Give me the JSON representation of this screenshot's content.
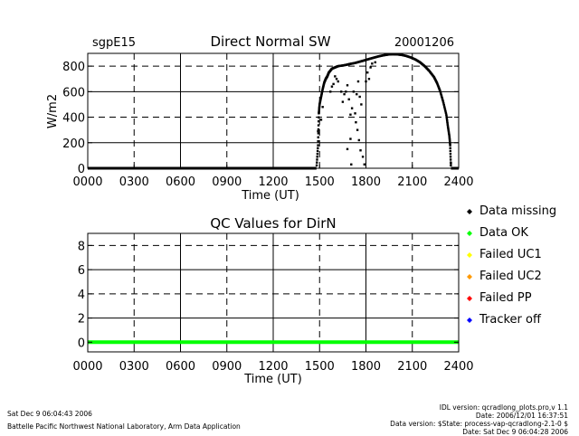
{
  "chart_data": [
    {
      "type": "scatter",
      "title": "Direct Normal SW",
      "left_label": "sgpE15",
      "right_label": "20001206",
      "xlabel": "Time (UT)",
      "ylabel": "W/m2",
      "xlim": [
        0,
        2400
      ],
      "ylim": [
        0,
        900
      ],
      "x_ticks": [
        "0000",
        "0300",
        "0600",
        "0900",
        "1200",
        "1500",
        "1800",
        "2100",
        "2400"
      ],
      "y_ticks": [
        "0",
        "200",
        "400",
        "600",
        "800"
      ],
      "grid": "dashed horizontal at 400 and 800, solid verticals every 3 h",
      "series": [
        {
          "color": "#000000",
          "points": [
            [
              0,
              0
            ],
            [
              1400,
              0
            ],
            [
              1480,
              0
            ],
            [
              1490,
              180
            ],
            [
              1495,
              430
            ],
            [
              1500,
              500
            ],
            [
              1510,
              560
            ],
            [
              1520,
              620
            ],
            [
              1530,
              670
            ],
            [
              1540,
              700
            ],
            [
              1550,
              720
            ],
            [
              1560,
              750
            ],
            [
              1580,
              780
            ],
            [
              1600,
              790
            ],
            [
              1620,
              800
            ],
            [
              1650,
              805
            ],
            [
              1680,
              812
            ],
            [
              1700,
              818
            ],
            [
              1730,
              825
            ],
            [
              1760,
              835
            ],
            [
              1790,
              845
            ],
            [
              1820,
              856
            ],
            [
              1850,
              866
            ],
            [
              1880,
              876
            ],
            [
              1910,
              884
            ],
            [
              1940,
              890
            ],
            [
              1970,
              893
            ],
            [
              2000,
              892
            ],
            [
              2030,
              888
            ],
            [
              2060,
              880
            ],
            [
              2090,
              868
            ],
            [
              2120,
              852
            ],
            [
              2150,
              830
            ],
            [
              2180,
              800
            ],
            [
              2210,
              762
            ],
            [
              2240,
              715
            ],
            [
              2260,
              668
            ],
            [
              2280,
              605
            ],
            [
              2300,
              520
            ],
            [
              2320,
              420
            ],
            [
              2330,
              330
            ],
            [
              2340,
              250
            ],
            [
              2345,
              180
            ],
            [
              2350,
              0
            ],
            [
              2400,
              0
            ]
          ],
          "scatter": [
            [
              1490,
              290
            ],
            [
              1510,
              380
            ],
            [
              1520,
              480
            ],
            [
              1570,
              600
            ],
            [
              1580,
              640
            ],
            [
              1590,
              660
            ],
            [
              1600,
              720
            ],
            [
              1610,
              700
            ],
            [
              1620,
              680
            ],
            [
              1640,
              600
            ],
            [
              1650,
              520
            ],
            [
              1660,
              580
            ],
            [
              1670,
              600
            ],
            [
              1680,
              650
            ],
            [
              1690,
              540
            ],
            [
              1700,
              420
            ],
            [
              1705,
              30
            ],
            [
              1710,
              470
            ],
            [
              1720,
              600
            ],
            [
              1730,
              430
            ],
            [
              1735,
              360
            ],
            [
              1740,
              580
            ],
            [
              1745,
              300
            ],
            [
              1750,
              680
            ],
            [
              1755,
              220
            ],
            [
              1760,
              560
            ],
            [
              1765,
              140
            ],
            [
              1770,
              500
            ],
            [
              1780,
              90
            ],
            [
              1790,
              30
            ],
            [
              1800,
              680
            ],
            [
              1810,
              750
            ],
            [
              1820,
              700
            ],
            [
              1830,
              790
            ],
            [
              1840,
              820
            ],
            [
              1860,
              830
            ],
            [
              1680,
              150
            ],
            [
              1700,
              230
            ],
            [
              2350,
              40
            ]
          ]
        }
      ]
    },
    {
      "type": "line",
      "title": "QC Values for DirN",
      "xlabel": "Time (UT)",
      "xlim": [
        0,
        2400
      ],
      "ylim": [
        -0.8,
        9
      ],
      "x_ticks": [
        "0000",
        "0300",
        "0600",
        "0900",
        "1200",
        "1500",
        "1800",
        "2100",
        "2400"
      ],
      "y_ticks": [
        "0",
        "2",
        "4",
        "6",
        "8"
      ],
      "series": [
        {
          "color": "#00ff00",
          "points": [
            [
              0,
              0
            ],
            [
              2400,
              0
            ]
          ]
        }
      ],
      "legend": [
        {
          "label": "Data missing",
          "color": "#000000"
        },
        {
          "label": "Data OK",
          "color": "#00ff00"
        },
        {
          "label": "Failed UC1",
          "color": "#ffff00"
        },
        {
          "label": "Failed UC2",
          "color": "#ff9900"
        },
        {
          "label": "Failed PP",
          "color": "#ff0000"
        },
        {
          "label": "Tracker off",
          "color": "#0000ff"
        }
      ],
      "legend_placement": "right"
    }
  ],
  "footer": {
    "left_line1": "Sat Dec  9 06:04:43 2006",
    "left_line2": "Battelle Pacific Northwest National Laboratory, Arm Data Application",
    "right_line1": "IDL version: qcradlong_plots.pro,v 1.1",
    "right_line2": "Date: 2006/12/01 16:37:51",
    "right_line3": "Data version: $State: process-vap-qcradlong-2.1-0 $",
    "right_line4": "Date: Sat Dec  9 06:04:28 2006"
  }
}
